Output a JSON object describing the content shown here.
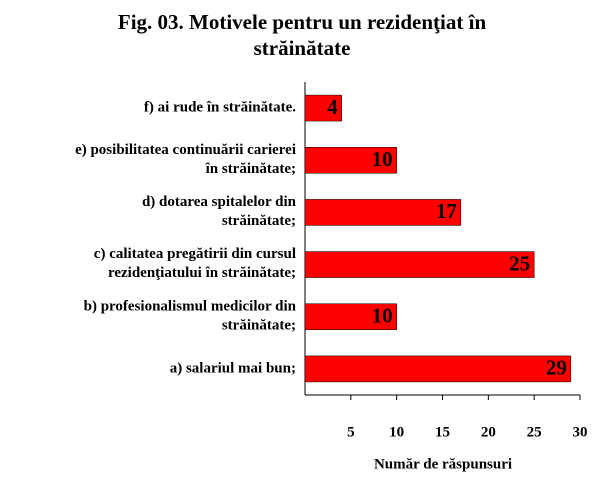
{
  "chart_data": {
    "type": "hbar",
    "title": "Fig. 03. Motivele pentru un rezidenţiat în\nstrăinătate",
    "categories": [
      "f) ai rude în străinătate.",
      "e) posibilitatea continuării carierei\nîn străinătate;",
      "d) dotarea spitalelor din\nstrăinătate;",
      "c) calitatea pregătirii din cursul\nrezidenţiatului în străinătate;",
      "b) profesionalismul medicilor din\nstrăinătate;",
      "a) salariul mai bun;"
    ],
    "values": [
      4,
      10,
      17,
      25,
      10,
      29
    ],
    "color": "#ff0000",
    "xlim": [
      0,
      30
    ],
    "xticks": [
      5,
      10,
      15,
      20,
      25,
      30
    ],
    "xlabel": "Număr de răspunsuri"
  }
}
